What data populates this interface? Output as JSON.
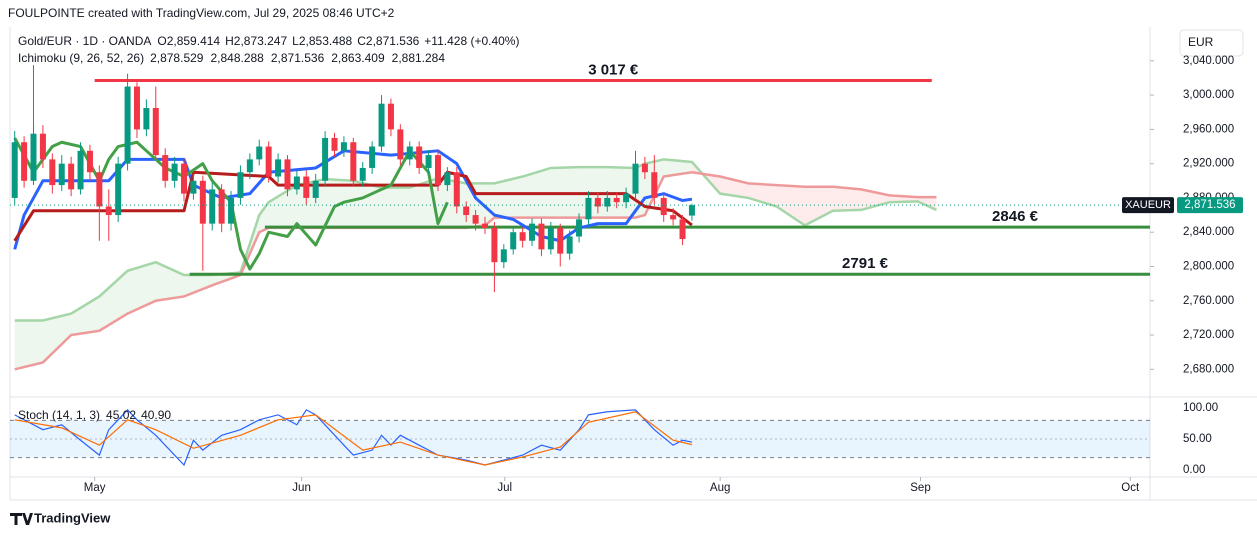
{
  "header": {
    "credit": "FOULPOINTE created with TradingView.com, Jul 29, 2025 08:46 UTC+2",
    "symbol": "Gold/EUR · 1D · OANDA",
    "ohlc": [
      [
        "O",
        "2,859.414"
      ],
      [
        "H",
        "2,873.247"
      ],
      [
        "L",
        "2,853.488"
      ],
      [
        "C",
        "2,871.536"
      ]
    ],
    "change": "+11.428 (+0.40%)",
    "ichimoku": {
      "name": "Ichimoku (9, 26, 52, 26)",
      "values": [
        "2,878.529",
        "2,848.288",
        "2,871.536",
        "2,863.409",
        "2,881.284"
      ]
    },
    "stoch": {
      "name": "Stoch (14, 1, 3)",
      "values": [
        "45.02",
        "40.90"
      ]
    },
    "currency": "EUR",
    "brand": "TradingView"
  },
  "chart_data": [
    {
      "type": "candlestick",
      "up_color": "#089981",
      "down_color": "#f23645",
      "candles": [
        [
          2880,
          2958,
          2872,
          2945
        ],
        [
          2945,
          2952,
          2892,
          2900
        ],
        [
          2900,
          3035,
          2895,
          2955
        ],
        [
          2955,
          2965,
          2915,
          2925
        ],
        [
          2925,
          2932,
          2885,
          2895
        ],
        [
          2895,
          2930,
          2888,
          2920
        ],
        [
          2920,
          2928,
          2882,
          2890
        ],
        [
          2890,
          2945,
          2884,
          2935
        ],
        [
          2935,
          2942,
          2900,
          2910
        ],
        [
          2910,
          2918,
          2830,
          2870
        ],
        [
          2870,
          2890,
          2830,
          2860
        ],
        [
          2860,
          2928,
          2852,
          2920
        ],
        [
          2920,
          3025,
          2912,
          3010
        ],
        [
          3010,
          3015,
          2950,
          2960
        ],
        [
          2960,
          2995,
          2952,
          2985
        ],
        [
          2985,
          3010,
          2925,
          2930
        ],
        [
          2930,
          2938,
          2892,
          2900
        ],
        [
          2900,
          2928,
          2892,
          2920
        ],
        [
          2920,
          2926,
          2876,
          2885
        ],
        [
          2885,
          2908,
          2878,
          2900
        ],
        [
          2900,
          2906,
          2795,
          2850
        ],
        [
          2850,
          2898,
          2842,
          2890
        ],
        [
          2890,
          2896,
          2840,
          2850
        ],
        [
          2850,
          2888,
          2842,
          2880
        ],
        [
          2880,
          2918,
          2872,
          2910
        ],
        [
          2910,
          2932,
          2902,
          2925
        ],
        [
          2925,
          2948,
          2918,
          2940
        ],
        [
          2940,
          2946,
          2898,
          2905
        ],
        [
          2905,
          2932,
          2898,
          2925
        ],
        [
          2925,
          2930,
          2882,
          2890
        ],
        [
          2890,
          2912,
          2884,
          2905
        ],
        [
          2905,
          2912,
          2872,
          2880
        ],
        [
          2880,
          2908,
          2874,
          2900
        ],
        [
          2900,
          2958,
          2894,
          2950
        ],
        [
          2950,
          2956,
          2928,
          2935
        ],
        [
          2935,
          2952,
          2928,
          2945
        ],
        [
          2945,
          2950,
          2894,
          2900
        ],
        [
          2900,
          2922,
          2893,
          2915
        ],
        [
          2915,
          2946,
          2908,
          2940
        ],
        [
          2940,
          3000,
          2934,
          2990
        ],
        [
          2990,
          2996,
          2952,
          2960
        ],
        [
          2960,
          2966,
          2918,
          2925
        ],
        [
          2925,
          2946,
          2918,
          2940
        ],
        [
          2940,
          2946,
          2908,
          2915
        ],
        [
          2915,
          2936,
          2908,
          2930
        ],
        [
          2930,
          2936,
          2888,
          2895
        ],
        [
          2895,
          2916,
          2888,
          2910
        ],
        [
          2910,
          2916,
          2862,
          2870
        ],
        [
          2870,
          2876,
          2852,
          2860
        ],
        [
          2860,
          2866,
          2842,
          2850
        ],
        [
          2850,
          2858,
          2838,
          2845
        ],
        [
          2845,
          2852,
          2770,
          2805
        ],
        [
          2805,
          2826,
          2798,
          2820
        ],
        [
          2820,
          2846,
          2814,
          2840
        ],
        [
          2840,
          2846,
          2822,
          2830
        ],
        [
          2830,
          2856,
          2824,
          2850
        ],
        [
          2850,
          2856,
          2812,
          2820
        ],
        [
          2820,
          2852,
          2814,
          2845
        ],
        [
          2845,
          2850,
          2800,
          2815
        ],
        [
          2815,
          2842,
          2808,
          2835
        ],
        [
          2835,
          2862,
          2828,
          2855
        ],
        [
          2855,
          2888,
          2848,
          2880
        ],
        [
          2880,
          2886,
          2862,
          2870
        ],
        [
          2870,
          2888,
          2864,
          2880
        ],
        [
          2880,
          2886,
          2868,
          2875
        ],
        [
          2875,
          2892,
          2868,
          2885
        ],
        [
          2885,
          2935,
          2878,
          2920
        ],
        [
          2920,
          2928,
          2902,
          2910
        ],
        [
          2910,
          2930,
          2872,
          2880
        ],
        [
          2880,
          2886,
          2852,
          2860
        ],
        [
          2860,
          2868,
          2848,
          2855
        ],
        [
          2855,
          2860,
          2825,
          2832
        ],
        [
          2859.414,
          2873.247,
          2853.488,
          2871.536
        ]
      ],
      "lines": [
        {
          "color": "#2962ff",
          "width": 3,
          "x": [
            0,
            1,
            3,
            5,
            8,
            10,
            12,
            18,
            19,
            22,
            25,
            27,
            32,
            35,
            40,
            45,
            47,
            49,
            51,
            53,
            56,
            58,
            60,
            62,
            65,
            67,
            69,
            71,
            72
          ],
          "values": [
            2820,
            2860,
            2900,
            2900,
            2900,
            2900,
            2925,
            2925,
            2895,
            2880,
            2885,
            2910,
            2915,
            2935,
            2930,
            2935,
            2920,
            2880,
            2860,
            2855,
            2835,
            2830,
            2845,
            2850,
            2850,
            2880,
            2885,
            2877,
            2878.529
          ]
        },
        {
          "color": "#b71c1c",
          "width": 3,
          "x": [
            0,
            2,
            18,
            19,
            27,
            28,
            45,
            46,
            48,
            49,
            65,
            67,
            70,
            72
          ],
          "values": [
            2830,
            2865,
            2865,
            2910,
            2905,
            2895,
            2895,
            2910,
            2905,
            2885,
            2885,
            2870,
            2865,
            2848.288
          ]
        },
        {
          "color": "#43a047",
          "width": 3,
          "x": [
            0,
            2,
            4,
            5,
            7,
            9,
            10,
            11,
            13,
            14,
            16,
            18,
            20,
            21,
            23,
            24,
            25,
            26,
            27,
            29,
            30,
            32,
            34,
            35,
            37,
            40,
            42,
            44,
            45,
            46
          ],
          "values": [
            2950,
            2910,
            2940,
            2945,
            2940,
            2900,
            2925,
            2940,
            2945,
            2935,
            2915,
            2905,
            2920,
            2900,
            2875,
            2820,
            2797,
            2815,
            2840,
            2835,
            2850,
            2825,
            2870,
            2875,
            2880,
            2895,
            2935,
            2910,
            2850,
            2875
          ]
        }
      ],
      "cloud": {
        "x": [
          0,
          3,
          6,
          9,
          12,
          15,
          18,
          21,
          24,
          26,
          27,
          30,
          33,
          36,
          39,
          42,
          45,
          48,
          50,
          51,
          54,
          57,
          60,
          63,
          66,
          67,
          69,
          72,
          75,
          78,
          81,
          84,
          87,
          90,
          93,
          96,
          98
        ],
        "span_a": {
          "color": "#a5d6a7",
          "values": [
            2737,
            2737,
            2745,
            2765,
            2795,
            2805,
            2790,
            2790,
            2793,
            2860,
            2875,
            2895,
            2902,
            2900,
            2892,
            2892,
            2903,
            2897,
            2897,
            2897,
            2905,
            2915,
            2916,
            2916,
            2915,
            2920,
            2925,
            2922,
            2885,
            2880,
            2870,
            2848,
            2865,
            2866,
            2875,
            2876,
            2866
          ]
        },
        "span_b": {
          "color": "#ef9a9a",
          "values": [
            2680,
            2688,
            2720,
            2725,
            2745,
            2760,
            2765,
            2778,
            2790,
            2840,
            2845,
            2845,
            2845,
            2845,
            2845,
            2845,
            2845,
            2845,
            2848,
            2857,
            2857,
            2857,
            2857,
            2857,
            2857,
            2860,
            2905,
            2910,
            2905,
            2897,
            2895,
            2893,
            2893,
            2890,
            2883,
            2881,
            2881
          ]
        }
      },
      "levels": [
        {
          "value": 3017,
          "label": "3 017 €",
          "color": "#f23645",
          "x": [
            8.5,
            97.5
          ]
        },
        {
          "value": 2846,
          "label": "2846 €",
          "color": "#388e3c",
          "x": [
            26.6,
            120.7
          ]
        },
        {
          "value": 2791,
          "label": "2791 €",
          "color": "#388e3c",
          "x": [
            18.6,
            120.7
          ]
        }
      ],
      "price_tag": {
        "symbol": "XAUEUR",
        "value": 2871.536,
        "label": "2,871.536"
      },
      "xlim": [
        -0.5,
        120.7
      ],
      "ylim": [
        2650,
        3076
      ],
      "yticks": [
        {
          "value": 2680,
          "label": "2,680.000"
        },
        {
          "value": 2720,
          "label": "2,720.000"
        },
        {
          "value": 2760,
          "label": "2,760.000"
        },
        {
          "value": 2800,
          "label": "2,800.000"
        },
        {
          "value": 2840,
          "label": "2,840.000"
        },
        {
          "value": 2880,
          "label": "2,880.000"
        },
        {
          "value": 2920,
          "label": "2,920.000"
        },
        {
          "value": 2960,
          "label": "2,960.000"
        },
        {
          "value": 3000,
          "label": "3,000.000"
        },
        {
          "value": 3040,
          "label": "3,040.000"
        }
      ],
      "xticks": [
        {
          "value": 8.5,
          "label": "May"
        },
        {
          "value": 30.5,
          "label": "Jun"
        },
        {
          "value": 52.1,
          "label": "Jul"
        },
        {
          "value": 75,
          "label": "Aug"
        },
        {
          "value": 96.3,
          "label": "Sep"
        },
        {
          "value": 118.6,
          "label": "Oct"
        }
      ]
    },
    {
      "type": "line",
      "ylim": [
        -13,
        113
      ],
      "yticks": [
        {
          "value": 0,
          "label": "0.00"
        },
        {
          "value": 50,
          "label": "50.00"
        },
        {
          "value": 100,
          "label": "100.00"
        }
      ],
      "bands": [
        20,
        80
      ],
      "series": [
        {
          "color": "#2962ff",
          "x": [
            0,
            3,
            5,
            7,
            9,
            10,
            12,
            13,
            15,
            18,
            19,
            20,
            22,
            24,
            26,
            28,
            30,
            31,
            32,
            35,
            36,
            38,
            39,
            40,
            41,
            43,
            45,
            48,
            50,
            52,
            54,
            56,
            58,
            60,
            61,
            63,
            66,
            68,
            70,
            71,
            72
          ],
          "values": [
            89,
            65,
            73,
            48,
            24,
            65,
            97,
            81,
            56,
            8,
            48,
            32,
            56,
            65,
            81,
            89,
            73,
            97,
            89,
            40,
            24,
            32,
            56,
            40,
            56,
            40,
            24,
            16,
            8,
            16,
            24,
            40,
            32,
            65,
            89,
            94,
            97,
            65,
            40,
            48,
            45.02
          ]
        },
        {
          "color": "#ff6d00",
          "x": [
            0,
            5,
            9,
            12,
            15,
            19,
            24,
            28,
            32,
            37,
            41,
            45,
            50,
            54,
            58,
            61,
            66,
            70,
            72
          ],
          "values": [
            81,
            68,
            40,
            81,
            65,
            35,
            56,
            81,
            89,
            32,
            45,
            24,
            8,
            21,
            37,
            77,
            94,
            48,
            40.9
          ]
        }
      ]
    }
  ]
}
